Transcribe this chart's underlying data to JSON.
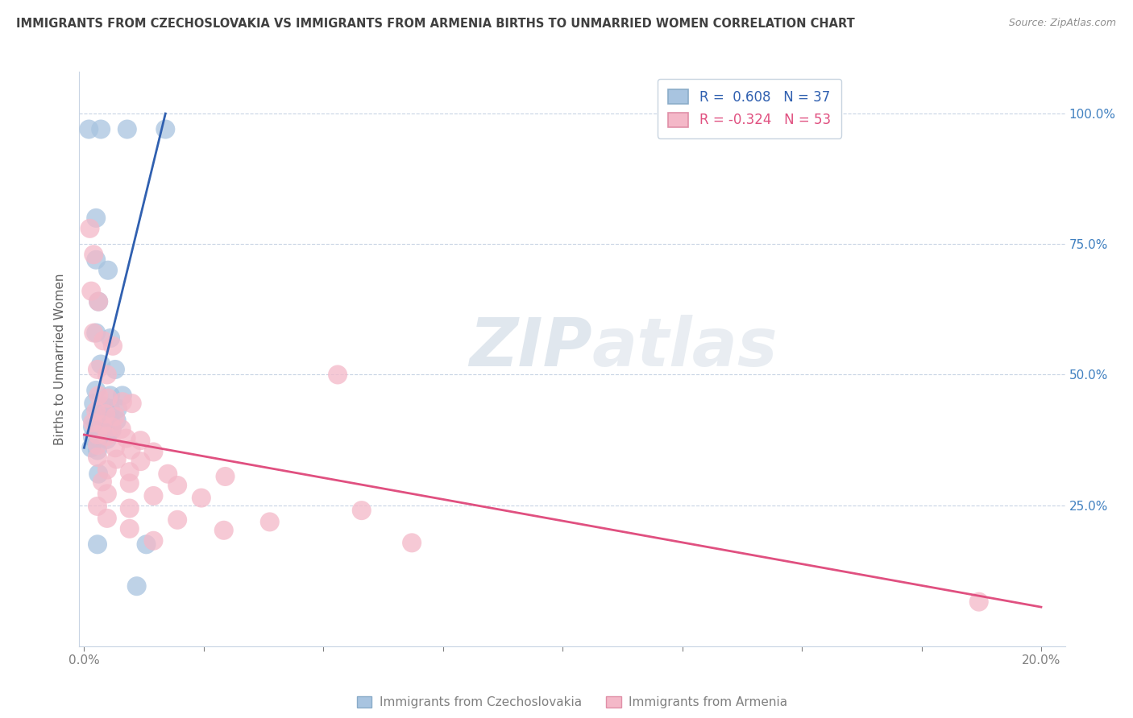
{
  "title": "IMMIGRANTS FROM CZECHOSLOVAKIA VS IMMIGRANTS FROM ARMENIA BIRTHS TO UNMARRIED WOMEN CORRELATION CHART",
  "source": "Source: ZipAtlas.com",
  "ylabel": "Births to Unmarried Women",
  "legend_blue_label": "Immigrants from Czechoslovakia",
  "legend_pink_label": "Immigrants from Armenia",
  "blue_R": 0.608,
  "blue_N": 37,
  "pink_R": -0.324,
  "pink_N": 53,
  "watermark": "ZIPatlas",
  "blue_scatter": [
    [
      0.001,
      0.97
    ],
    [
      0.0035,
      0.97
    ],
    [
      0.009,
      0.97
    ],
    [
      0.017,
      0.97
    ],
    [
      0.0025,
      0.8
    ],
    [
      0.0025,
      0.72
    ],
    [
      0.005,
      0.7
    ],
    [
      0.003,
      0.64
    ],
    [
      0.0025,
      0.58
    ],
    [
      0.0055,
      0.57
    ],
    [
      0.0035,
      0.52
    ],
    [
      0.0065,
      0.51
    ],
    [
      0.0025,
      0.47
    ],
    [
      0.0055,
      0.46
    ],
    [
      0.008,
      0.46
    ],
    [
      0.002,
      0.445
    ],
    [
      0.004,
      0.44
    ],
    [
      0.0055,
      0.435
    ],
    [
      0.007,
      0.435
    ],
    [
      0.0015,
      0.42
    ],
    [
      0.003,
      0.418
    ],
    [
      0.0042,
      0.415
    ],
    [
      0.0055,
      0.412
    ],
    [
      0.0068,
      0.412
    ],
    [
      0.0018,
      0.4
    ],
    [
      0.0032,
      0.398
    ],
    [
      0.0045,
      0.396
    ],
    [
      0.0058,
      0.394
    ],
    [
      0.0018,
      0.38
    ],
    [
      0.003,
      0.378
    ],
    [
      0.0048,
      0.376
    ],
    [
      0.0015,
      0.36
    ],
    [
      0.0028,
      0.355
    ],
    [
      0.003,
      0.31
    ],
    [
      0.0028,
      0.175
    ],
    [
      0.013,
      0.175
    ],
    [
      0.011,
      0.095
    ]
  ],
  "pink_scatter": [
    [
      0.0012,
      0.78
    ],
    [
      0.002,
      0.73
    ],
    [
      0.0015,
      0.66
    ],
    [
      0.003,
      0.64
    ],
    [
      0.002,
      0.58
    ],
    [
      0.004,
      0.565
    ],
    [
      0.006,
      0.555
    ],
    [
      0.0028,
      0.51
    ],
    [
      0.0048,
      0.5
    ],
    [
      0.053,
      0.5
    ],
    [
      0.003,
      0.46
    ],
    [
      0.005,
      0.455
    ],
    [
      0.008,
      0.448
    ],
    [
      0.01,
      0.445
    ],
    [
      0.0025,
      0.43
    ],
    [
      0.0045,
      0.425
    ],
    [
      0.0065,
      0.42
    ],
    [
      0.0018,
      0.408
    ],
    [
      0.0038,
      0.404
    ],
    [
      0.0058,
      0.4
    ],
    [
      0.0078,
      0.396
    ],
    [
      0.0028,
      0.385
    ],
    [
      0.0048,
      0.382
    ],
    [
      0.0088,
      0.378
    ],
    [
      0.0118,
      0.374
    ],
    [
      0.0028,
      0.365
    ],
    [
      0.0065,
      0.36
    ],
    [
      0.0098,
      0.356
    ],
    [
      0.0145,
      0.352
    ],
    [
      0.0028,
      0.342
    ],
    [
      0.0068,
      0.338
    ],
    [
      0.0118,
      0.334
    ],
    [
      0.0048,
      0.318
    ],
    [
      0.0095,
      0.314
    ],
    [
      0.0175,
      0.31
    ],
    [
      0.0295,
      0.305
    ],
    [
      0.0038,
      0.295
    ],
    [
      0.0095,
      0.292
    ],
    [
      0.0195,
      0.288
    ],
    [
      0.0048,
      0.272
    ],
    [
      0.0145,
      0.268
    ],
    [
      0.0245,
      0.264
    ],
    [
      0.0028,
      0.248
    ],
    [
      0.0095,
      0.244
    ],
    [
      0.058,
      0.24
    ],
    [
      0.0048,
      0.225
    ],
    [
      0.0195,
      0.222
    ],
    [
      0.0388,
      0.218
    ],
    [
      0.0095,
      0.205
    ],
    [
      0.0292,
      0.202
    ],
    [
      0.0145,
      0.182
    ],
    [
      0.0685,
      0.178
    ],
    [
      0.187,
      0.065
    ]
  ],
  "blue_line_x": [
    0.0,
    0.017
  ],
  "blue_line_y": [
    0.36,
    1.0
  ],
  "pink_line_x": [
    0.0,
    0.2
  ],
  "pink_line_y": [
    0.385,
    0.055
  ],
  "xlim": [
    -0.001,
    0.205
  ],
  "ylim": [
    -0.02,
    1.08
  ],
  "x_ticks": [
    0.0,
    0.025,
    0.05,
    0.075,
    0.1,
    0.125,
    0.15,
    0.175,
    0.2
  ],
  "x_tick_labels": [
    "0.0%",
    "",
    "",
    "",
    "",
    "",
    "",
    "",
    "20.0%"
  ],
  "y_ticks": [
    0.0,
    0.25,
    0.5,
    0.75,
    1.0
  ],
  "y_tick_labels_right": [
    "",
    "25.0%",
    "50.0%",
    "75.0%",
    "100.0%"
  ],
  "bg_color": "#ffffff",
  "blue_color": "#a8c4e0",
  "pink_color": "#f4b8c8",
  "blue_line_color": "#3060b0",
  "pink_line_color": "#e05080",
  "grid_color": "#c8d4e4",
  "title_color": "#404040",
  "source_color": "#909090",
  "right_axis_color": "#4080c0"
}
